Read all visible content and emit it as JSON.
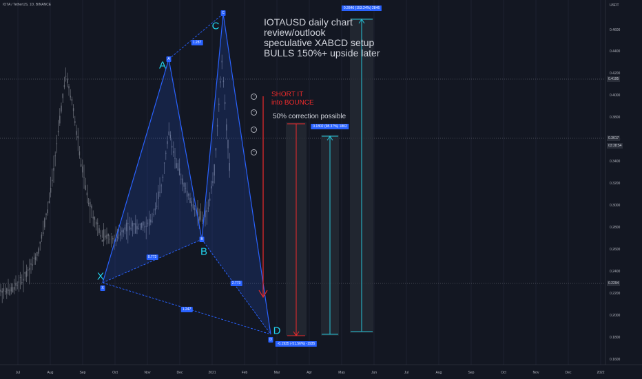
{
  "header": {
    "symbol_line": "IOTA / TetherUS, 1D, BINANCE"
  },
  "price_axis": {
    "unit": "USDT",
    "ticks": [
      "0.4600",
      "0.4400",
      "0.4200",
      "0.4000",
      "0.3800",
      "0.3600",
      "0.3400",
      "0.3200",
      "0.3000",
      "0.2800",
      "0.2600",
      "0.2400",
      "0.2200",
      "0.2000",
      "0.1800",
      "0.1600"
    ],
    "tags": {
      "upper": "0.4195",
      "current": "0.3617",
      "countdown": "03:38:54",
      "lower": "0.2294"
    }
  },
  "time_axis": {
    "ticks": [
      "Jul",
      "Aug",
      "Sep",
      "Oct",
      "Nov",
      "Dec",
      "2021",
      "Feb",
      "Mar",
      "Apr",
      "May",
      "Jun",
      "Jul",
      "Aug",
      "Sep",
      "Oct",
      "Nov",
      "Dec",
      "2022"
    ]
  },
  "pattern": {
    "points": [
      {
        "box": "X",
        "label": "X"
      },
      {
        "box": "A",
        "label": "A"
      },
      {
        "box": "B",
        "label": "B"
      },
      {
        "box": "C",
        "label": "C"
      },
      {
        "box": "D",
        "label": "D"
      }
    ],
    "ratios": [
      "0.772",
      "1.287",
      "2.773",
      "1.247"
    ]
  },
  "annotations": {
    "main_note": "IOTAUSD daily chart\nreview/outlook\nspeculative XABCD setup\nBULLS 150%+ upside later",
    "short_note": "SHORT IT\ninto BOUNCE",
    "correction_note": "50% correction possible"
  },
  "measures": {
    "down": "-0.1935 (-51.56%) -1935",
    "up_one": "0.1802 (98.37%) 1802",
    "up_two": "0.2846 (153.24%) 2846"
  },
  "colors": {
    "background": "#131722",
    "pattern": "#2962ff",
    "point_label": "#22d3ee",
    "short_arrow": "#ef2b2b",
    "target_arrow": "#26c6da"
  },
  "icons": [
    "minus-circle-icon",
    "minus-circle-icon",
    "minus-circle-icon",
    "minus-circle-icon"
  ]
}
